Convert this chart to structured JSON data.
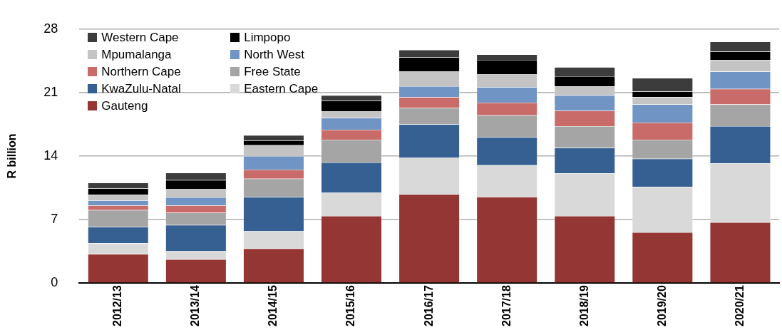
{
  "chart_data": {
    "type": "bar",
    "stacked": true,
    "ylabel": "R billion",
    "categories": [
      "2012/13",
      "2013/14",
      "2014/15",
      "2015/16",
      "2016/17",
      "2017/18",
      "2018/19",
      "2019/20",
      "2020/21"
    ],
    "series": [
      {
        "name": "Gauteng",
        "color": "#943634",
        "values": [
          3.2,
          2.6,
          3.8,
          7.4,
          9.8,
          9.5,
          7.4,
          5.6,
          6.7
        ]
      },
      {
        "name": "Eastern Cape",
        "color": "#d9d9d9",
        "values": [
          1.2,
          0.9,
          1.9,
          2.55,
          4.0,
          3.5,
          4.7,
          5.0,
          6.5
        ]
      },
      {
        "name": "KwaZulu-Natal",
        "color": "#366092",
        "values": [
          1.8,
          2.9,
          3.8,
          3.35,
          3.7,
          3.1,
          2.8,
          3.1,
          4.1
        ]
      },
      {
        "name": "Free State",
        "color": "#a5a5a5",
        "values": [
          1.85,
          1.35,
          2.0,
          2.5,
          1.8,
          2.4,
          2.4,
          2.1,
          2.4
        ]
      },
      {
        "name": "Northern Cape",
        "color": "#c96b69",
        "values": [
          0.5,
          0.8,
          1.0,
          1.1,
          1.2,
          1.4,
          1.7,
          1.9,
          1.7
        ]
      },
      {
        "name": "North West",
        "color": "#7094c4",
        "values": [
          0.55,
          0.9,
          1.5,
          1.3,
          1.2,
          1.7,
          1.7,
          2.0,
          1.9
        ]
      },
      {
        "name": "Mpumalanga",
        "color": "#c4c4c4",
        "values": [
          0.65,
          0.9,
          1.2,
          0.7,
          1.6,
          1.4,
          1.0,
          0.8,
          1.3
        ]
      },
      {
        "name": "Limpopo",
        "color": "#000000",
        "values": [
          0.7,
          1.0,
          0.5,
          1.2,
          1.6,
          1.6,
          1.1,
          0.6,
          0.9
        ]
      },
      {
        "name": "Western Cape",
        "color": "#3c3c3c",
        "values": [
          0.6,
          0.8,
          0.6,
          0.6,
          0.8,
          0.6,
          1.0,
          1.5,
          1.1
        ]
      }
    ],
    "ylim": [
      0,
      28
    ],
    "yticks": [
      0,
      7,
      14,
      21,
      28
    ],
    "grid": "y",
    "legend": "top left"
  }
}
